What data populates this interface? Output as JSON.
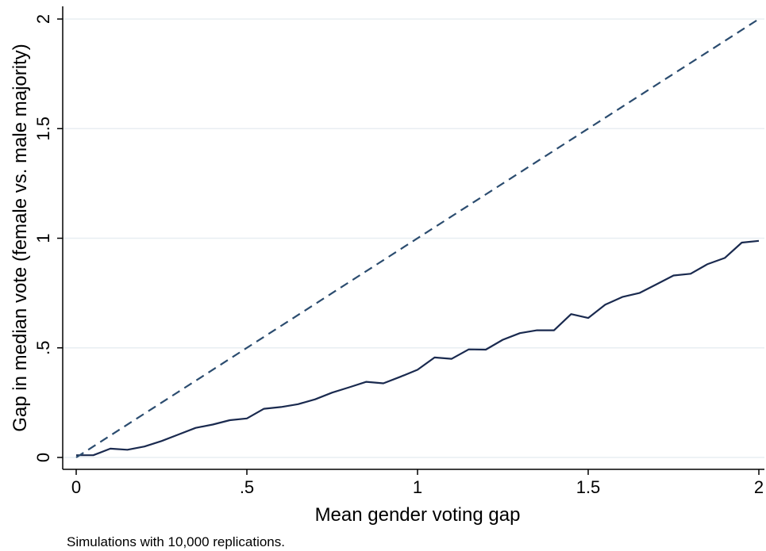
{
  "chart_data": {
    "type": "line",
    "title": "",
    "xlabel": "Mean gender voting gap",
    "ylabel": "Gap in median vote (female vs. male majority)",
    "note": "Simulations with 10,000 replications.",
    "xlim": [
      0,
      2
    ],
    "ylim": [
      0,
      2
    ],
    "x_ticks": [
      {
        "value": 0,
        "label": "0"
      },
      {
        "value": 0.5,
        "label": ".5"
      },
      {
        "value": 1,
        "label": "1"
      },
      {
        "value": 1.5,
        "label": "1.5"
      },
      {
        "value": 2,
        "label": "2"
      }
    ],
    "y_ticks": [
      {
        "value": 0,
        "label": "0"
      },
      {
        "value": 0.5,
        "label": ".5"
      },
      {
        "value": 1,
        "label": "1"
      },
      {
        "value": 1.5,
        "label": "1.5"
      },
      {
        "value": 2,
        "label": "2"
      }
    ],
    "grid": true,
    "legend": "none",
    "series": [
      {
        "style": "solid",
        "color": "#1a2a4f",
        "x": [
          0,
          0.05,
          0.1,
          0.15,
          0.2,
          0.25,
          0.3,
          0.35,
          0.4,
          0.45,
          0.5,
          0.55,
          0.6,
          0.65,
          0.7,
          0.75,
          0.8,
          0.85,
          0.9,
          0.95,
          1.0,
          1.05,
          1.1,
          1.15,
          1.2,
          1.25,
          1.3,
          1.35,
          1.4,
          1.45,
          1.5,
          1.55,
          1.6,
          1.65,
          1.7,
          1.75,
          1.8,
          1.85,
          1.9,
          1.95,
          2.0
        ],
        "y": [
          0.01,
          0.01,
          0.04,
          0.035,
          0.05,
          0.075,
          0.105,
          0.135,
          0.15,
          0.17,
          0.178,
          0.222,
          0.23,
          0.243,
          0.265,
          0.296,
          0.32,
          0.345,
          0.338,
          0.368,
          0.4,
          0.456,
          0.45,
          0.493,
          0.492,
          0.537,
          0.567,
          0.58,
          0.58,
          0.654,
          0.636,
          0.697,
          0.732,
          0.75,
          0.79,
          0.83,
          0.838,
          0.882,
          0.91,
          0.98,
          0.988
        ]
      },
      {
        "style": "dashed",
        "color": "#2b4c6f",
        "x": [
          0,
          2
        ],
        "y": [
          0,
          2
        ]
      }
    ]
  }
}
